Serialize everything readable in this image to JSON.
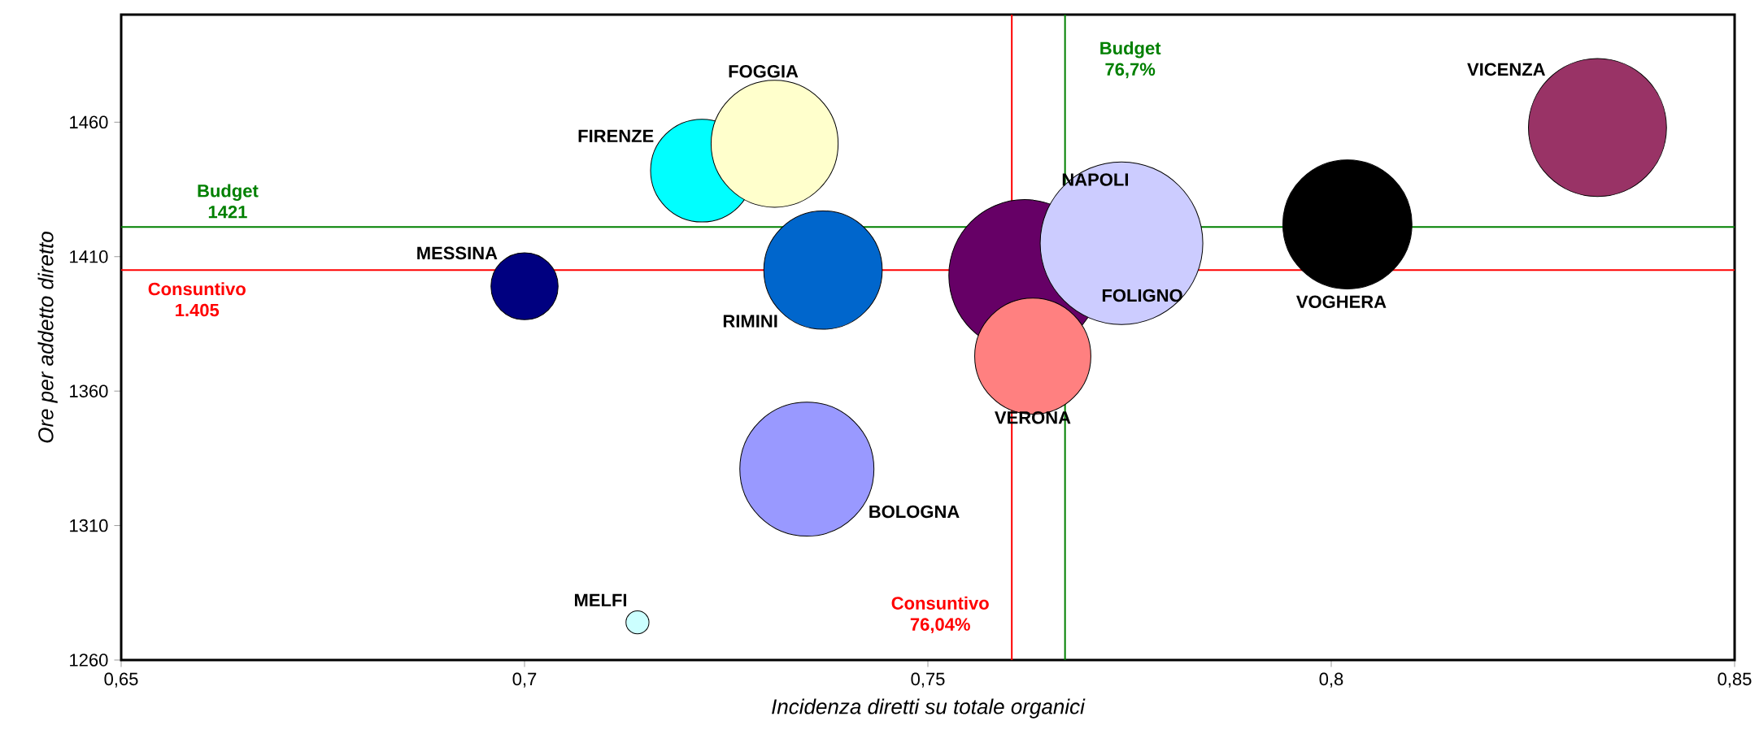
{
  "chart_data": {
    "type": "bubble",
    "xlabel": "Incidenza diretti su totale organici",
    "ylabel": "Ore per addetto diretto",
    "xlim": [
      0.65,
      0.85
    ],
    "ylim": [
      1260,
      1500
    ],
    "xticks": [
      {
        "value": 0.65,
        "label": "0,65"
      },
      {
        "value": 0.7,
        "label": "0,7"
      },
      {
        "value": 0.75,
        "label": "0,75"
      },
      {
        "value": 0.8,
        "label": "0,8"
      },
      {
        "value": 0.85,
        "label": "0,85"
      }
    ],
    "yticks": [
      1260,
      1310,
      1360,
      1410,
      1460
    ],
    "series": [
      {
        "name": "MESSINA",
        "color": "#000080",
        "x": [
          0.7
        ],
        "values": [
          1399
        ],
        "sizes": [
          0.17
        ]
      },
      {
        "name": "MELFI",
        "color": "#ccffff",
        "x": [
          0.714
        ],
        "values": [
          1274
        ],
        "sizes": [
          0.02
        ]
      },
      {
        "name": "FIRENZE",
        "color": "#00ffff",
        "x": [
          0.722
        ],
        "values": [
          1442
        ],
        "sizes": [
          0.4
        ]
      },
      {
        "name": "FOGGIA",
        "color": "#ffffcc",
        "x": [
          0.731
        ],
        "values": [
          1452
        ],
        "sizes": [
          0.61
        ]
      },
      {
        "name": "RIMINI",
        "color": "#0066cc",
        "x": [
          0.737
        ],
        "values": [
          1405
        ],
        "sizes": [
          0.53
        ]
      },
      {
        "name": "BOLOGNA",
        "color": "#9999ff",
        "x": [
          0.735
        ],
        "values": [
          1331
        ],
        "sizes": [
          0.68
        ]
      },
      {
        "name": "FOLIGNO",
        "color": "#660066",
        "x": [
          0.762
        ],
        "values": [
          1403
        ],
        "sizes": [
          0.87
        ]
      },
      {
        "name": "VERONA",
        "color": "#ff8080",
        "x": [
          0.763
        ],
        "values": [
          1373
        ],
        "sizes": [
          0.51
        ]
      },
      {
        "name": "NAPOLI",
        "color": "#ccccff",
        "x": [
          0.774
        ],
        "values": [
          1415
        ],
        "sizes": [
          1
        ]
      },
      {
        "name": "VOGHERA",
        "color": "#000000",
        "x": [
          0.802
        ],
        "values": [
          1422
        ],
        "sizes": [
          0.63
        ]
      },
      {
        "name": "VICENZA",
        "color": "#993366",
        "x": [
          0.833
        ],
        "values": [
          1458
        ],
        "sizes": [
          0.72
        ]
      }
    ],
    "ref_lines": [
      {
        "axis": "y",
        "value": 1421,
        "label": "Budget 1421",
        "color": "#008000"
      },
      {
        "axis": "y",
        "value": 1405,
        "label": "Consuntivo 1.405",
        "color": "#ff0000"
      },
      {
        "axis": "x",
        "value": 0.767,
        "label": "Budget 76,7%",
        "color": "#008000"
      },
      {
        "axis": "x",
        "value": 0.7604,
        "label": "Consuntivo 76,04%",
        "color": "#ff0000"
      }
    ]
  }
}
